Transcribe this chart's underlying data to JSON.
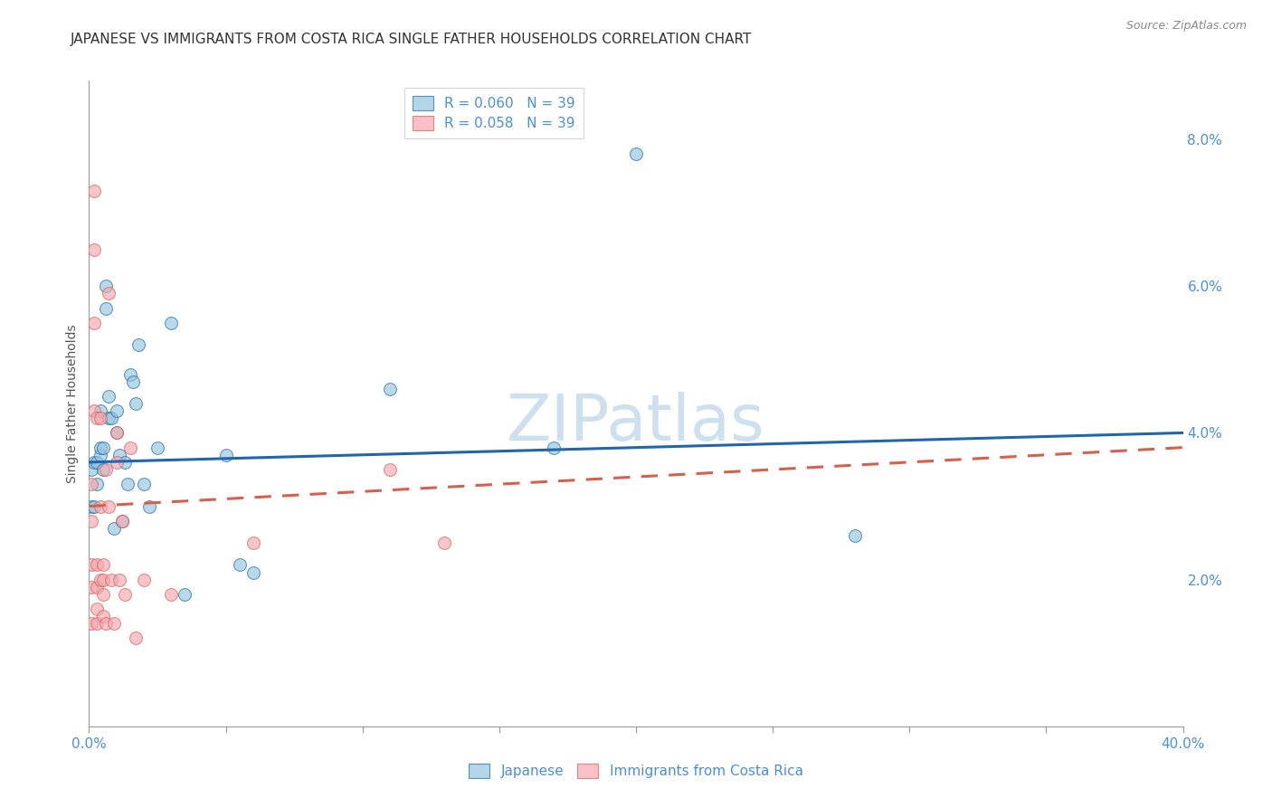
{
  "title": "JAPANESE VS IMMIGRANTS FROM COSTA RICA SINGLE FATHER HOUSEHOLDS CORRELATION CHART",
  "source": "Source: ZipAtlas.com",
  "ylabel": "Single Father Households",
  "watermark": "ZIPatlas",
  "legend_blue_r": "R = 0.060",
  "legend_blue_n": "N = 39",
  "legend_pink_r": "R = 0.058",
  "legend_pink_n": "N = 39",
  "blue_color": "#92c5de",
  "pink_color": "#f4a7b0",
  "trendline_blue": "#2166ac",
  "trendline_pink": "#d6604d",
  "xlim": [
    0.0,
    0.4
  ],
  "ylim": [
    0.0,
    0.088
  ],
  "right_yticks": [
    0.02,
    0.04,
    0.06,
    0.08
  ],
  "right_yticklabels": [
    "2.0%",
    "4.0%",
    "6.0%",
    "8.0%"
  ],
  "blue_x": [
    0.001,
    0.001,
    0.002,
    0.002,
    0.003,
    0.003,
    0.004,
    0.004,
    0.004,
    0.005,
    0.005,
    0.006,
    0.006,
    0.007,
    0.007,
    0.008,
    0.009,
    0.01,
    0.01,
    0.011,
    0.012,
    0.013,
    0.014,
    0.015,
    0.016,
    0.017,
    0.018,
    0.02,
    0.022,
    0.025,
    0.03,
    0.035,
    0.05,
    0.055,
    0.06,
    0.11,
    0.17,
    0.2,
    0.28
  ],
  "blue_y": [
    0.035,
    0.03,
    0.036,
    0.03,
    0.036,
    0.033,
    0.037,
    0.043,
    0.038,
    0.038,
    0.035,
    0.057,
    0.06,
    0.042,
    0.045,
    0.042,
    0.027,
    0.043,
    0.04,
    0.037,
    0.028,
    0.036,
    0.033,
    0.048,
    0.047,
    0.044,
    0.052,
    0.033,
    0.03,
    0.038,
    0.055,
    0.018,
    0.037,
    0.022,
    0.021,
    0.046,
    0.038,
    0.078,
    0.026
  ],
  "pink_x": [
    0.001,
    0.001,
    0.001,
    0.001,
    0.001,
    0.002,
    0.002,
    0.002,
    0.002,
    0.003,
    0.003,
    0.003,
    0.003,
    0.003,
    0.004,
    0.004,
    0.004,
    0.005,
    0.005,
    0.005,
    0.005,
    0.006,
    0.006,
    0.007,
    0.007,
    0.008,
    0.009,
    0.01,
    0.01,
    0.011,
    0.012,
    0.013,
    0.015,
    0.017,
    0.02,
    0.03,
    0.06,
    0.11,
    0.13
  ],
  "pink_y": [
    0.033,
    0.028,
    0.022,
    0.019,
    0.014,
    0.073,
    0.065,
    0.055,
    0.043,
    0.022,
    0.019,
    0.016,
    0.014,
    0.042,
    0.042,
    0.03,
    0.02,
    0.02,
    0.018,
    0.015,
    0.022,
    0.014,
    0.035,
    0.03,
    0.059,
    0.02,
    0.014,
    0.04,
    0.036,
    0.02,
    0.028,
    0.018,
    0.038,
    0.012,
    0.02,
    0.018,
    0.025,
    0.035,
    0.025
  ],
  "blue_trend_x": [
    0.0,
    0.4
  ],
  "blue_trend_y": [
    0.036,
    0.04
  ],
  "pink_trend_x": [
    0.0,
    0.4
  ],
  "pink_trend_y": [
    0.03,
    0.038
  ],
  "blue_scatter_size": 100,
  "pink_scatter_size": 100,
  "title_fontsize": 11,
  "axis_label_fontsize": 10,
  "tick_fontsize": 11,
  "legend_fontsize": 11,
  "watermark_fontsize": 52,
  "watermark_color": "#cde0f0",
  "background_color": "#ffffff",
  "grid_color": "#bbbbbb",
  "tick_color": "#4a90d9",
  "label_color": "#555555"
}
